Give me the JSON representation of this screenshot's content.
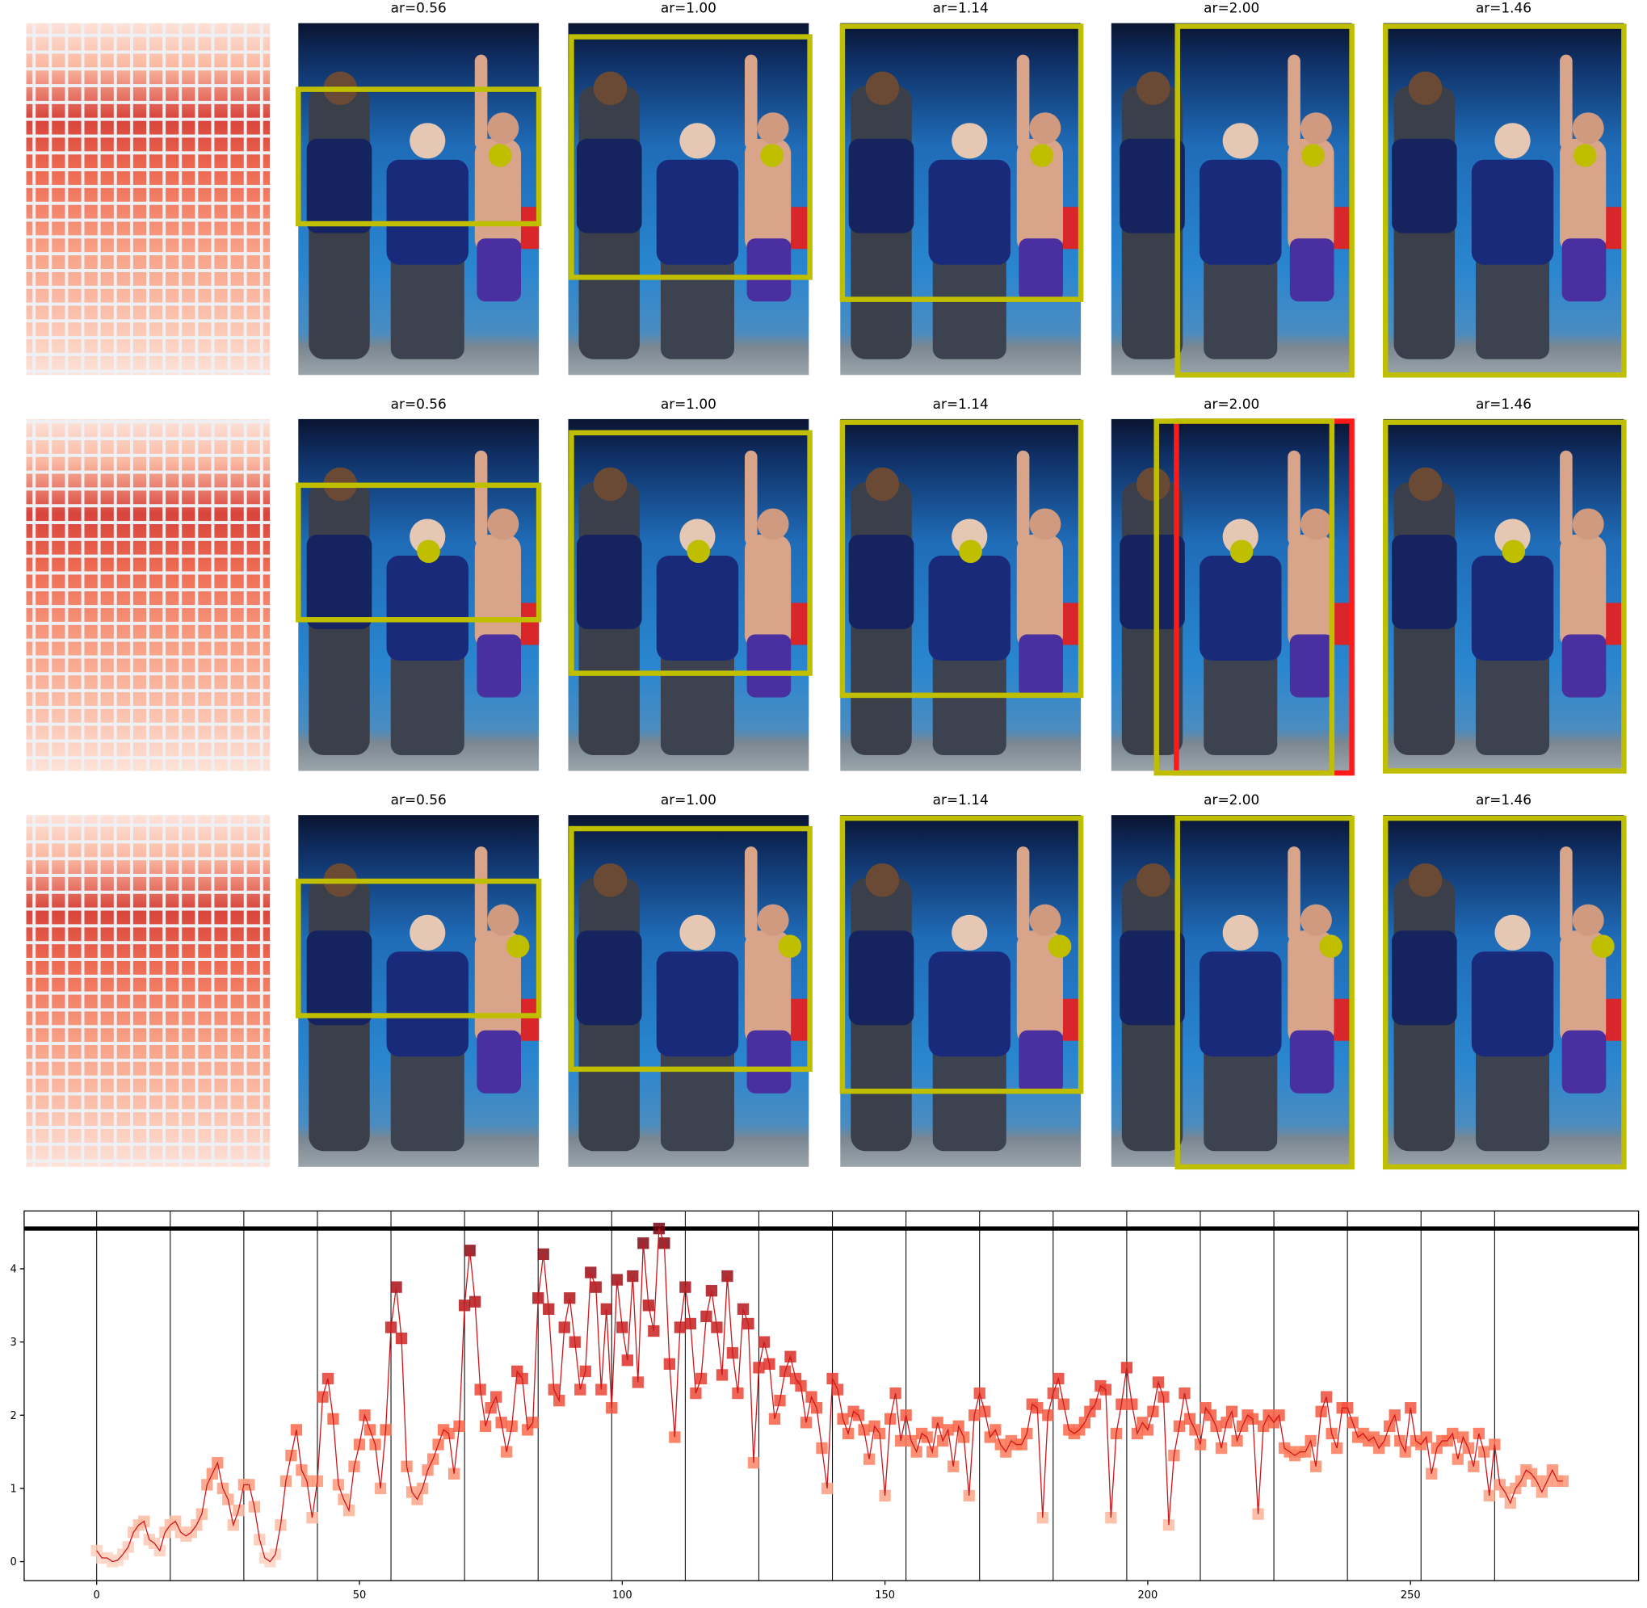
{
  "panels": {
    "titles": [
      [
        "ar=0.56",
        "ar=1.00",
        "ar=1.14",
        "ar=2.00",
        "ar=1.46"
      ],
      [
        "ar=0.56",
        "ar=1.00",
        "ar=1.14",
        "ar=2.00",
        "ar=1.46"
      ],
      [
        "ar=0.56",
        "ar=1.00",
        "ar=1.14",
        "ar=2.00",
        "ar=1.46"
      ]
    ]
  },
  "chart_data": {
    "type": "line",
    "x": [
      0,
      1,
      2,
      3,
      4,
      5,
      6,
      7,
      8,
      9,
      10,
      11,
      12,
      13,
      14,
      15,
      16,
      17,
      18,
      19,
      20,
      21,
      22,
      23,
      24,
      25,
      26,
      27,
      28,
      29,
      30,
      31,
      32,
      33,
      34,
      35,
      36,
      37,
      38,
      39,
      40,
      41,
      42,
      43,
      44,
      45,
      46,
      47,
      48,
      49,
      50,
      51,
      52,
      53,
      54,
      55,
      56,
      57,
      58,
      59,
      60,
      61,
      62,
      63,
      64,
      65,
      66,
      67,
      68,
      69,
      70,
      71,
      72,
      73,
      74,
      75,
      76,
      77,
      78,
      79,
      80,
      81,
      82,
      83,
      84,
      85,
      86,
      87,
      88,
      89,
      90,
      91,
      92,
      93,
      94,
      95,
      96,
      97,
      98,
      99,
      100,
      101,
      102,
      103,
      104,
      105,
      106,
      107,
      108,
      109,
      110,
      111,
      112,
      113,
      114,
      115,
      116,
      117,
      118,
      119,
      120,
      121,
      122,
      123,
      124,
      125,
      126,
      127,
      128,
      129,
      130,
      131,
      132,
      133,
      134,
      135,
      136,
      137,
      138,
      139,
      140,
      141,
      142,
      143,
      144,
      145,
      146,
      147,
      148,
      149,
      150,
      151,
      152,
      153,
      154,
      155,
      156,
      157,
      158,
      159,
      160,
      161,
      162,
      163,
      164,
      165,
      166,
      167,
      168,
      169,
      170,
      171,
      172,
      173,
      174,
      175,
      176,
      177,
      178,
      179,
      180,
      181,
      182,
      183,
      184,
      185,
      186,
      187,
      188,
      189,
      190,
      191,
      192,
      193,
      194,
      195,
      196,
      197,
      198,
      199,
      200,
      201,
      202,
      203,
      204,
      205,
      206,
      207,
      208,
      209,
      210,
      211,
      212,
      213,
      214,
      215,
      216,
      217,
      218,
      219,
      220,
      221,
      222,
      223,
      224,
      225,
      226,
      227,
      228,
      229,
      230,
      231,
      232,
      233,
      234,
      235,
      236,
      237,
      238,
      239,
      240,
      241,
      242,
      243,
      244,
      245,
      246,
      247,
      248,
      249,
      250,
      251,
      252,
      253,
      254,
      255,
      256,
      257,
      258,
      259,
      260,
      261,
      262,
      263,
      264,
      265,
      266,
      267,
      268,
      269,
      270,
      271,
      272,
      273,
      274,
      275,
      276,
      277,
      278,
      279
    ],
    "values": [
      0.15,
      0.05,
      0.05,
      0,
      0.02,
      0.1,
      0.2,
      0.4,
      0.5,
      0.55,
      0.3,
      0.25,
      0.15,
      0.4,
      0.5,
      0.55,
      0.4,
      0.35,
      0.4,
      0.5,
      0.65,
      1.05,
      1.2,
      1.35,
      1.0,
      0.85,
      0.5,
      0.7,
      1.05,
      1.05,
      0.75,
      0.3,
      0.05,
      0.0,
      0.1,
      0.5,
      1.1,
      1.45,
      1.8,
      1.25,
      1.1,
      0.6,
      1.1,
      2.25,
      2.5,
      1.95,
      1.05,
      0.85,
      0.7,
      1.3,
      1.6,
      2.0,
      1.8,
      1.6,
      1.0,
      1.8,
      3.2,
      3.75,
      3.05,
      1.3,
      0.95,
      0.85,
      1.0,
      1.25,
      1.4,
      1.6,
      1.8,
      1.75,
      1.2,
      1.85,
      3.5,
      4.25,
      3.55,
      2.35,
      1.85,
      2.1,
      2.25,
      1.9,
      1.5,
      1.85,
      2.6,
      2.5,
      1.8,
      1.9,
      3.6,
      4.2,
      3.45,
      2.35,
      2.2,
      3.2,
      3.6,
      3.0,
      2.35,
      2.6,
      3.95,
      3.75,
      2.35,
      3.45,
      2.1,
      3.85,
      3.2,
      2.75,
      3.9,
      2.45,
      4.35,
      3.5,
      3.15,
      4.55,
      4.35,
      2.7,
      1.7,
      3.2,
      3.75,
      3.25,
      2.3,
      2.5,
      3.35,
      3.7,
      3.2,
      2.55,
      3.9,
      2.85,
      2.3,
      3.45,
      3.25,
      1.35,
      2.65,
      3.0,
      2.7,
      1.95,
      2.2,
      2.6,
      2.8,
      2.5,
      2.4,
      1.9,
      2.25,
      2.1,
      1.55,
      1.0,
      2.5,
      2.35,
      1.95,
      1.75,
      2.05,
      2.0,
      1.8,
      1.4,
      1.85,
      1.75,
      0.9,
      1.95,
      2.3,
      1.65,
      2.0,
      1.65,
      1.5,
      1.75,
      1.7,
      1.5,
      1.9,
      1.65,
      1.8,
      1.3,
      1.85,
      1.7,
      0.9,
      2.0,
      2.3,
      2.05,
      1.7,
      1.8,
      1.6,
      1.5,
      1.65,
      1.6,
      1.6,
      1.75,
      2.15,
      2.1,
      0.6,
      2.0,
      2.3,
      2.5,
      2.15,
      1.8,
      1.75,
      1.8,
      1.9,
      2.05,
      2.15,
      2.4,
      2.35,
      0.6,
      1.75,
      2.15,
      2.65,
      2.15,
      1.75,
      1.9,
      1.8,
      2.05,
      2.45,
      2.25,
      0.5,
      1.45,
      1.85,
      2.3,
      1.95,
      1.8,
      1.6,
      2.1,
      2.0,
      1.85,
      1.55,
      1.9,
      2.05,
      1.65,
      1.85,
      2.0,
      1.95,
      0.65,
      1.85,
      2.0,
      1.9,
      2.0,
      1.55,
      1.5,
      1.45,
      1.5,
      1.5,
      1.65,
      1.3,
      2.05,
      2.25,
      1.75,
      1.55,
      2.1,
      2.1,
      1.9,
      1.7,
      1.75,
      1.65,
      1.7,
      1.55,
      1.65,
      1.85,
      2.0,
      1.65,
      1.5,
      2.1,
      1.65,
      1.6,
      1.7,
      1.2,
      1.55,
      1.65,
      1.65,
      1.75,
      1.4,
      1.7,
      1.55,
      1.3,
      1.75,
      1.5,
      0.9,
      1.6,
      1.05,
      0.95,
      0.8,
      1.0,
      1.1,
      1.25,
      1.2,
      1.1,
      0.95,
      1.1,
      1.25,
      1.1,
      1.1
    ],
    "color": "#cb181d",
    "marker_colormap": [
      "#fee5d9",
      "#fcae91",
      "#fb6a4a",
      "#de2d26",
      "#a50f15",
      "#67000d"
    ],
    "vlines": [
      0,
      14,
      28,
      42,
      56,
      70,
      84,
      98,
      112,
      126,
      140,
      154,
      168,
      182,
      196,
      210,
      224,
      238,
      252,
      266
    ],
    "hline": 4.55,
    "xlim": [
      -13.8,
      293.4
    ],
    "ylim": [
      -0.26,
      4.79
    ],
    "xticks": [
      0,
      50,
      100,
      150,
      200,
      250
    ],
    "yticks": [
      0,
      1,
      2,
      3,
      4
    ]
  }
}
